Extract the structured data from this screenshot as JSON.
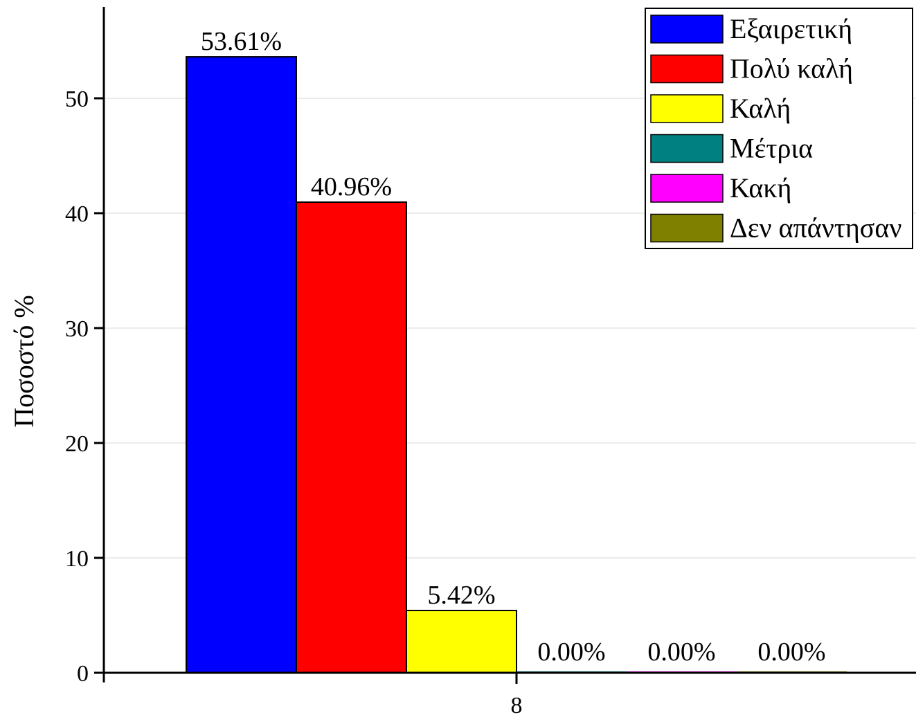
{
  "chart_data": {
    "type": "bar",
    "title": "",
    "xlabel": "",
    "ylabel": "Ποσοστό %",
    "categories": [
      "8"
    ],
    "ylim": [
      0,
      58
    ],
    "yticks": [
      0,
      10,
      20,
      30,
      40,
      50
    ],
    "grid": true,
    "legend_position": "top-right",
    "series": [
      {
        "name": "Εξαιρετική",
        "values": [
          53.61
        ],
        "label": "53.61%",
        "color": "#0000FF"
      },
      {
        "name": "Πολύ καλή",
        "values": [
          40.96
        ],
        "label": "40.96%",
        "color": "#FF0000"
      },
      {
        "name": "Καλή",
        "values": [
          5.42
        ],
        "label": "5.42%",
        "color": "#FFFF00"
      },
      {
        "name": "Μέτρια",
        "values": [
          0.0
        ],
        "label": "0.00%",
        "color": "#008080"
      },
      {
        "name": "Κακή",
        "values": [
          0.0
        ],
        "label": "0.00%",
        "color": "#FF00FF"
      },
      {
        "name": "Δεν απάντησαν",
        "values": [
          0.0
        ],
        "label": "0.00%",
        "color": "#808000"
      }
    ]
  }
}
